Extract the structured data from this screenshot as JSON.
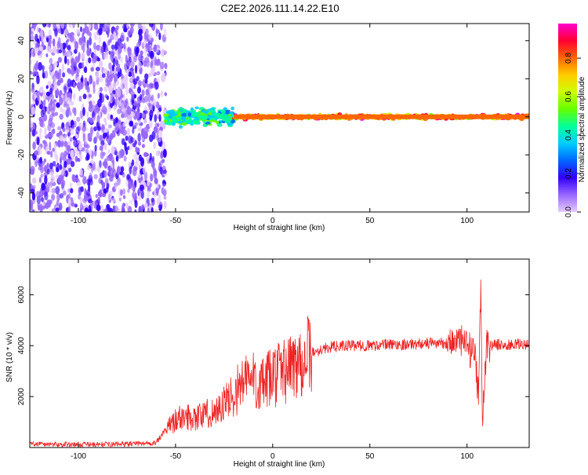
{
  "title": "C2E2.2026.111.14.22.E10",
  "chart_data": [
    {
      "type": "heatmap",
      "xlabel": "Height of straight line (km)",
      "ylabel": "Frequency (Hz)",
      "xlim": [
        -125,
        132
      ],
      "ylim": [
        -50,
        49
      ],
      "xticks": [
        -100,
        -50,
        0,
        50,
        100
      ],
      "yticks": [
        -40,
        -20,
        0,
        20,
        40
      ],
      "grid": false,
      "colorbar": {
        "label": "Normalized spectral amplitude",
        "range": [
          0,
          0.98
        ],
        "ticks": [
          "0.0",
          "0.2",
          "0.4",
          "0.6",
          "0.8"
        ],
        "tick_values": [
          0,
          0.2,
          0.4,
          0.6,
          0.8
        ],
        "colors": [
          "#e6ccff",
          "#9966ff",
          "#3300ff",
          "#0066ff",
          "#00ccff",
          "#00ff99",
          "#66ff00",
          "#ccff00",
          "#ffcc00",
          "#ff6600",
          "#ff0033",
          "#ff00cc"
        ]
      },
      "regions": [
        {
          "x": [
            -125,
            -55
          ],
          "freq_spread": [
            -50,
            49
          ],
          "amplitude": 0.1
        },
        {
          "x": [
            -55,
            -20
          ],
          "freq_spread": [
            -6,
            6
          ],
          "amplitude": 0.5
        },
        {
          "x": [
            -20,
            132
          ],
          "freq_spread": [
            -1.5,
            1.5
          ],
          "amplitude": 0.9
        }
      ]
    },
    {
      "type": "line",
      "xlabel": "Height of straight line (km)",
      "ylabel": "SNR (10 * v/v)",
      "xlim": [
        -125,
        132
      ],
      "ylim": [
        0,
        7400
      ],
      "xticks": [
        -100,
        -50,
        0,
        50,
        100
      ],
      "yticks": [
        2000,
        4000,
        6000
      ],
      "grid": false,
      "color": "#ee2222",
      "series": [
        {
          "x": [
            -125,
            -110,
            -90,
            -70,
            -60,
            -55,
            -50,
            -45,
            -40,
            -35,
            -30,
            -25,
            -20,
            -15,
            -10,
            -5,
            0,
            5,
            10,
            15,
            20,
            25,
            30,
            40,
            50,
            60,
            70,
            80,
            90,
            95,
            100,
            104,
            106,
            107,
            108,
            110,
            115,
            120,
            125,
            132
          ],
          "y": [
            150,
            120,
            120,
            150,
            180,
            700,
            1100,
            1200,
            1200,
            1300,
            1400,
            1700,
            2100,
            2600,
            2700,
            2400,
            2800,
            3000,
            3200,
            3500,
            3700,
            3850,
            3950,
            4000,
            4000,
            4050,
            4050,
            4100,
            4100,
            4200,
            4000,
            3500,
            1800,
            6500,
            1200,
            4000,
            4050,
            4000,
            4050,
            4050
          ]
        }
      ]
    }
  ]
}
